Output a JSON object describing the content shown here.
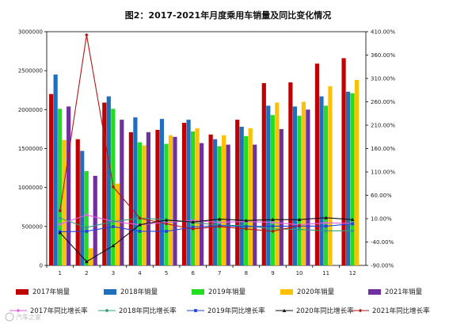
{
  "watermark": "汽车之家",
  "chart_data": {
    "type": "bar",
    "title": "图2：2017-2021年月度乘用车销量及同比变化情况",
    "categories": [
      "1",
      "2",
      "3",
      "4",
      "5",
      "6",
      "7",
      "8",
      "9",
      "10",
      "11",
      "12"
    ],
    "ylim": [
      0,
      3000000
    ],
    "y2lim": [
      -90,
      410
    ],
    "yticks": [
      "0",
      "500000",
      "1000000",
      "1500000",
      "2000000",
      "2500000",
      "3000000"
    ],
    "y2ticks": [
      "-90.00%",
      "-40.00%",
      "10.00%",
      "60.00%",
      "110.00%",
      "160.00%",
      "210.00%",
      "260.00%",
      "310.00%",
      "360.00%",
      "410.00%"
    ],
    "series": [
      {
        "name": "2017年销量",
        "color": "#c00000",
        "values": [
          2200000,
          1620000,
          2090000,
          1710000,
          1740000,
          1830000,
          1680000,
          1870000,
          2340000,
          2350000,
          2590000,
          2660000
        ]
      },
      {
        "name": "2018年销量",
        "color": "#1f6fbf",
        "values": [
          2450000,
          1470000,
          2170000,
          1900000,
          1880000,
          1870000,
          1620000,
          1780000,
          2050000,
          2040000,
          2170000,
          2230000
        ]
      },
      {
        "name": "2019年销量",
        "color": "#22dd22",
        "values": [
          2010000,
          1210000,
          2010000,
          1580000,
          1560000,
          1720000,
          1530000,
          1660000,
          1930000,
          1920000,
          2050000,
          2210000
        ]
      },
      {
        "name": "2020年销量",
        "color": "#ffc000",
        "values": [
          1610000,
          220000,
          1050000,
          1540000,
          1670000,
          1760000,
          1670000,
          1760000,
          2090000,
          2100000,
          2300000,
          2380000
        ]
      },
      {
        "name": "2021年销量",
        "color": "#7030a0",
        "values": [
          2040000,
          1150000,
          1870000,
          1710000,
          1650000,
          1570000,
          1550000,
          1550000,
          1750000,
          2000000,
          0,
          0
        ]
      }
    ],
    "line_series": [
      {
        "name": "2017年同比增长率",
        "color": "#e060e0",
        "marker": "diamond",
        "values": [
          -2,
          18,
          4,
          -3,
          2,
          6,
          2,
          4,
          2,
          -3,
          1,
          0
        ]
      },
      {
        "name": "2018年同比增长率",
        "color": "#2fa07a",
        "marker": "circle",
        "values": [
          11,
          -9,
          4,
          11,
          8,
          2,
          -4,
          -5,
          -12,
          -13,
          -16,
          -16
        ]
      },
      {
        "name": "2019年同比增长率",
        "color": "#2244dd",
        "marker": "square",
        "values": [
          -18,
          -17,
          -7,
          -17,
          -17,
          -8,
          -5,
          -7,
          -6,
          -6,
          -6,
          -1
        ]
      },
      {
        "name": "2020年同比增长率",
        "color": "#111111",
        "marker": "triangle",
        "values": [
          -20,
          -82,
          -48,
          -3,
          7,
          3,
          9,
          6,
          8,
          8,
          12,
          8
        ]
      },
      {
        "name": "2021年同比增长率",
        "color": "#b01818",
        "marker": "diamond",
        "values": [
          27,
          403,
          78,
          11,
          -1,
          -12,
          -7,
          -12,
          -17,
          -5,
          null,
          null
        ]
      }
    ],
    "legend_position": "bottom",
    "grid": false
  }
}
